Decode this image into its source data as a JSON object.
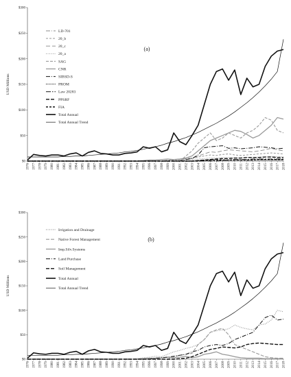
{
  "chart_data": [
    {
      "type": "line",
      "panel_label": "(a)",
      "ylabel": "USD Millions",
      "ylim": [
        0,
        300
      ],
      "yticks": [
        "$0",
        "$50",
        "$100",
        "$150",
        "$200",
        "$250",
        "$300"
      ],
      "x": [
        1976,
        1977,
        1978,
        1979,
        1980,
        1981,
        1982,
        1983,
        1984,
        1985,
        1986,
        1987,
        1988,
        1989,
        1990,
        1991,
        1992,
        1993,
        1994,
        1995,
        1996,
        1997,
        1998,
        1999,
        2000,
        2001,
        2002,
        2003,
        2004,
        2005,
        2006,
        2007,
        2008,
        2009,
        2010,
        2011,
        2012,
        2013,
        2014,
        2015,
        2016,
        2017,
        2018
      ],
      "legend_position": "left",
      "series": [
        {
          "name": "LD-701",
          "color": "#888888",
          "dash": "6 2 1 2",
          "width": 0.9,
          "values": [
            0,
            0,
            0,
            0,
            0,
            0,
            0,
            0,
            0,
            0,
            0,
            0,
            0,
            0,
            0,
            0,
            0,
            0,
            0,
            0,
            0,
            0,
            0,
            0,
            0,
            0,
            0,
            0,
            0,
            0,
            0,
            0,
            0,
            0,
            0,
            0,
            0,
            0,
            0,
            0,
            0,
            0,
            0
          ]
        },
        {
          "name": "20_b",
          "color": "#888888",
          "dash": "3 2",
          "width": 0.9,
          "values": [
            0,
            0,
            0,
            0,
            0,
            0,
            0,
            0,
            0,
            0,
            0,
            0,
            0,
            0,
            0,
            0,
            0,
            0,
            0,
            0,
            0,
            0,
            0,
            1,
            2,
            3,
            4,
            5,
            8,
            10,
            12,
            11,
            13,
            14,
            12,
            11,
            12,
            13,
            14,
            15,
            16,
            15,
            14
          ]
        },
        {
          "name": "20_c",
          "color": "#888888",
          "dash": "6 3",
          "width": 0.9,
          "values": [
            0,
            0,
            0,
            0,
            0,
            0,
            0,
            0,
            0,
            0,
            0,
            0,
            0,
            0,
            0,
            0,
            0,
            0,
            0,
            0,
            0,
            0,
            0,
            2,
            3,
            4,
            5,
            6,
            10,
            14,
            18,
            17,
            20,
            22,
            21,
            20,
            19,
            18,
            20,
            22,
            25,
            22,
            20
          ]
        },
        {
          "name": "20_a",
          "color": "#888888",
          "dash": "1 1.5",
          "width": 0.9,
          "values": [
            0,
            0,
            0,
            0,
            0,
            0,
            0,
            0,
            0,
            0,
            0,
            0,
            0,
            0,
            0,
            0,
            0,
            0,
            0,
            0,
            0,
            0,
            0,
            1,
            2,
            2,
            3,
            3,
            4,
            5,
            6,
            6,
            7,
            7,
            6,
            6,
            7,
            7,
            8,
            8,
            9,
            9,
            8
          ]
        },
        {
          "name": "SAG",
          "color": "#999999",
          "dash": "4 2",
          "width": 1.1,
          "values": [
            0,
            0,
            0,
            0,
            0,
            0,
            0,
            0,
            0,
            0,
            0,
            0,
            0,
            0,
            0,
            0,
            0,
            0,
            0,
            0,
            0,
            0,
            0,
            0,
            0,
            0,
            10,
            20,
            35,
            45,
            55,
            40,
            45,
            55,
            50,
            45,
            55,
            60,
            70,
            85,
            80,
            60,
            55
          ]
        },
        {
          "name": "CNR",
          "color": "#999999",
          "dash": "",
          "width": 1.3,
          "values": [
            0,
            0,
            0,
            0,
            0,
            0,
            0,
            0,
            0,
            0,
            0,
            0,
            0,
            0,
            0,
            0,
            0,
            0,
            0,
            1,
            2,
            2,
            3,
            4,
            3,
            4,
            6,
            10,
            20,
            30,
            40,
            45,
            50,
            55,
            60,
            58,
            52,
            45,
            50,
            60,
            70,
            85,
            82
          ]
        },
        {
          "name": "SIBSD-S",
          "color": "#111111",
          "dash": "6 2 1 2",
          "width": 1.0,
          "values": [
            0,
            0,
            0,
            0,
            0,
            0,
            0,
            0,
            0,
            0,
            0,
            0,
            0,
            0,
            0,
            0,
            0,
            0,
            0,
            0,
            0,
            0,
            0,
            0,
            0,
            0,
            3,
            5,
            12,
            26,
            28,
            29,
            30,
            25,
            26,
            24,
            25,
            26,
            28,
            27,
            26,
            24,
            25
          ]
        },
        {
          "name": "PROM",
          "color": "#111111",
          "dash": "1 1.2",
          "width": 1.1,
          "values": [
            0,
            0,
            0,
            0,
            0,
            0,
            0,
            0,
            0,
            0,
            0,
            0,
            0,
            0,
            0,
            0,
            0,
            0,
            0,
            0,
            0,
            0,
            0,
            0,
            0,
            0,
            0,
            0,
            1,
            2,
            2,
            2,
            2,
            2,
            2,
            2,
            2,
            2,
            2,
            2,
            2,
            2,
            2
          ]
        },
        {
          "name": "Law 20283",
          "color": "#111111",
          "dash": "7 2 1.5 2",
          "width": 1.0,
          "values": [
            0,
            0,
            0,
            0,
            0,
            0,
            0,
            0,
            0,
            0,
            0,
            0,
            0,
            0,
            0,
            0,
            0,
            0,
            0,
            0,
            0,
            0,
            0,
            0,
            0,
            0,
            0,
            0,
            0,
            0,
            0,
            0,
            1,
            2,
            3,
            3,
            3,
            4,
            4,
            4,
            4,
            4,
            4
          ]
        },
        {
          "name": "PPSRF",
          "color": "#111111",
          "dash": "5 2",
          "width": 1.4,
          "values": [
            0,
            0,
            0,
            0,
            0,
            0,
            0,
            0,
            0,
            0,
            0,
            0,
            0,
            0,
            0,
            0,
            0,
            0,
            0,
            0,
            0,
            0,
            0,
            0,
            0,
            0,
            0,
            0,
            1,
            2,
            3,
            4,
            5,
            5,
            6,
            6,
            7,
            7,
            7,
            8,
            8,
            7,
            7
          ]
        },
        {
          "name": "FIA",
          "color": "#111111",
          "dash": "3 2",
          "width": 1.4,
          "values": [
            0,
            0,
            0,
            0,
            0,
            0,
            0,
            0,
            0,
            0,
            0,
            0,
            0,
            0,
            0,
            0,
            0,
            0,
            0,
            0,
            0,
            0,
            0,
            0,
            0,
            0,
            0,
            0,
            0,
            1,
            2,
            2,
            2,
            2,
            2,
            2,
            2,
            2,
            3,
            3,
            3,
            3,
            3
          ]
        },
        {
          "name": "Total Annual",
          "color": "#111111",
          "dash": "",
          "width": 1.6,
          "values": [
            2,
            13,
            11,
            10,
            12,
            12,
            10,
            14,
            16,
            10,
            17,
            20,
            15,
            14,
            12,
            12,
            15,
            16,
            18,
            28,
            25,
            28,
            18,
            22,
            55,
            38,
            32,
            50,
            70,
            110,
            150,
            175,
            180,
            158,
            178,
            130,
            162,
            145,
            150,
            185,
            205,
            215,
            218
          ]
        },
        {
          "name": "Total Annual Trend",
          "color": "#111111",
          "dash": "",
          "width": 0.7,
          "values": [
            8,
            8,
            8,
            8,
            8,
            8,
            9,
            9,
            10,
            10,
            11,
            12,
            13,
            14,
            15,
            16,
            18,
            19,
            21,
            23,
            26,
            28,
            31,
            35,
            38,
            42,
            46,
            51,
            56,
            62,
            68,
            74,
            81,
            88,
            96,
            105,
            114,
            124,
            135,
            147,
            160,
            175,
            238
          ]
        }
      ]
    },
    {
      "type": "line",
      "panel_label": "(b)",
      "ylabel": "USD Millions",
      "ylim": [
        0,
        300
      ],
      "yticks": [
        "$0",
        "$50",
        "$100",
        "$150",
        "$200",
        "$250",
        "$300"
      ],
      "x": [
        1976,
        1977,
        1978,
        1979,
        1980,
        1981,
        1982,
        1983,
        1984,
        1985,
        1986,
        1987,
        1988,
        1989,
        1990,
        1991,
        1992,
        1993,
        1994,
        1995,
        1996,
        1997,
        1998,
        1999,
        2000,
        2001,
        2002,
        2003,
        2004,
        2005,
        2006,
        2007,
        2008,
        2009,
        2010,
        2011,
        2012,
        2013,
        2014,
        2015,
        2016,
        2017,
        2018
      ],
      "legend_position": "left",
      "series": [
        {
          "name": "Irrigation and Drainage",
          "color": "#999999",
          "dash": "1 1.5",
          "width": 1.2,
          "values": [
            0,
            0,
            0,
            0,
            0,
            0,
            0,
            0,
            0,
            0,
            0,
            0,
            0,
            0,
            0,
            0,
            0,
            0,
            1,
            3,
            4,
            6,
            5,
            10,
            15,
            18,
            22,
            25,
            30,
            40,
            55,
            58,
            60,
            62,
            70,
            65,
            62,
            60,
            70,
            72,
            80,
            100,
            97
          ]
        },
        {
          "name": "Native Forest Management",
          "color": "#999999",
          "dash": "5 2",
          "width": 1.1,
          "values": [
            0,
            0,
            0,
            0,
            0,
            0,
            0,
            0,
            0,
            0,
            0,
            0,
            0,
            0,
            0,
            0,
            0,
            0,
            0,
            0,
            0,
            0,
            0,
            0,
            5,
            8,
            10,
            12,
            30,
            40,
            55,
            60,
            63,
            50,
            30,
            25,
            20,
            15,
            10,
            5,
            3,
            2,
            2
          ]
        },
        {
          "name": "Imp.Silv.Systems",
          "color": "#999999",
          "dash": "",
          "width": 1.3,
          "values": [
            0,
            0,
            0,
            0,
            0,
            0,
            0,
            0,
            0,
            0,
            0,
            0,
            0,
            0,
            0,
            0,
            0,
            0,
            0,
            1,
            2,
            2,
            3,
            4,
            3,
            4,
            6,
            3,
            5,
            10,
            12,
            15,
            10,
            8,
            5,
            3,
            2,
            2,
            2,
            1,
            1,
            1,
            1
          ]
        },
        {
          "name": "Land Purchase",
          "color": "#111111",
          "dash": "6 2 1 2",
          "width": 1.0,
          "values": [
            0,
            0,
            0,
            0,
            0,
            0,
            0,
            0,
            0,
            0,
            0,
            0,
            0,
            0,
            0,
            0,
            0,
            0,
            0,
            0,
            0,
            2,
            3,
            4,
            6,
            8,
            10,
            15,
            18,
            25,
            28,
            30,
            28,
            32,
            40,
            45,
            50,
            55,
            70,
            85,
            90,
            80,
            82
          ]
        },
        {
          "name": "Soil Management",
          "color": "#111111",
          "dash": "5 2",
          "width": 1.4,
          "values": [
            0,
            0,
            0,
            0,
            0,
            0,
            0,
            0,
            0,
            0,
            0,
            0,
            0,
            0,
            0,
            0,
            0,
            0,
            0,
            0,
            0,
            0,
            0,
            0,
            0,
            1,
            2,
            5,
            10,
            15,
            20,
            22,
            25,
            24,
            23,
            25,
            30,
            32,
            33,
            32,
            31,
            30,
            30
          ]
        },
        {
          "name": "Total Annual",
          "color": "#111111",
          "dash": "",
          "width": 1.6,
          "values": [
            2,
            13,
            11,
            10,
            12,
            12,
            10,
            14,
            16,
            10,
            17,
            20,
            15,
            14,
            12,
            12,
            15,
            16,
            18,
            28,
            25,
            28,
            18,
            22,
            55,
            38,
            32,
            50,
            70,
            110,
            150,
            175,
            180,
            158,
            178,
            130,
            162,
            145,
            150,
            185,
            205,
            215,
            218
          ]
        },
        {
          "name": "Total Annual Trend",
          "color": "#111111",
          "dash": "",
          "width": 0.7,
          "values": [
            8,
            8,
            8,
            8,
            8,
            8,
            9,
            9,
            10,
            10,
            11,
            12,
            13,
            14,
            15,
            16,
            18,
            19,
            21,
            23,
            26,
            28,
            31,
            35,
            38,
            42,
            46,
            51,
            56,
            62,
            68,
            74,
            81,
            88,
            96,
            105,
            114,
            124,
            135,
            147,
            160,
            175,
            238
          ]
        }
      ]
    }
  ]
}
